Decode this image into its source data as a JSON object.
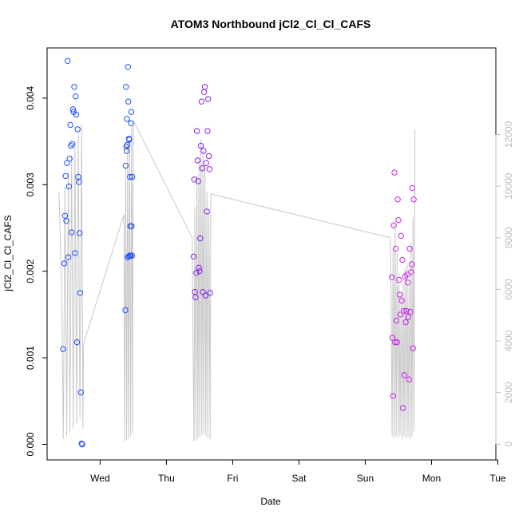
{
  "chart_data": {
    "type": "scatter",
    "title": "ATOM3 Northbound jCl2_Cl_Cl_CAFS",
    "xlabel": "Date",
    "ylabel": "jCl2_Cl_Cl_CAFS",
    "x_ticks": [
      "Wed",
      "Thu",
      "Fri",
      "Sat",
      "Sun",
      "Mon",
      "Tue"
    ],
    "xlim": [
      -0.8,
      5.97
    ],
    "ylim": [
      -0.00018,
      0.00458
    ],
    "y_ticks": [
      "0.000",
      "0.001",
      "0.002",
      "0.003",
      "0.004"
    ],
    "y_tick_values": [
      0,
      0.001,
      0.002,
      0.003,
      0.004
    ],
    "y2_ticks": [
      "0",
      "2000",
      "4000",
      "6000",
      "8000",
      "10000",
      "12000"
    ],
    "y2_tick_values": [
      0,
      2000,
      4000,
      6000,
      8000,
      10000,
      12000
    ],
    "y2lim": [
      -612,
      15360
    ],
    "colors": {
      "blue": "#1f4fff",
      "violet": "#8822ee",
      "magenta": "#cc22ee",
      "line": "#c8c8c8",
      "axis": "#000000"
    },
    "series": [
      {
        "color_key": "blue",
        "x": [
          -0.56,
          -0.54,
          -0.53,
          -0.52,
          -0.51,
          -0.5,
          -0.49,
          -0.48,
          -0.47,
          -0.46,
          -0.45,
          -0.44,
          -0.43,
          -0.42,
          -0.41,
          -0.4,
          -0.39,
          -0.38,
          -0.37,
          -0.36,
          -0.35,
          -0.34,
          -0.33,
          -0.32,
          -0.31,
          -0.3,
          -0.29,
          -0.28,
          -0.27
        ],
        "y": [
          0.0011,
          0.00209,
          0.00264,
          0.0031,
          0.00258,
          0.00325,
          0.00443,
          0.00216,
          0.00298,
          0.0033,
          0.00369,
          0.00345,
          0.00245,
          0.00347,
          0.00387,
          0.00384,
          0.00413,
          0.00221,
          0.00402,
          0.00381,
          0.00118,
          0.00364,
          0.00309,
          0.00303,
          0.00244,
          0.00175,
          0.0006,
          1e-05,
          0.0
        ]
      },
      {
        "color_key": "blue",
        "x": [
          0.38,
          0.385,
          0.39,
          0.395,
          0.4,
          0.405,
          0.41,
          0.415,
          0.42,
          0.425,
          0.43,
          0.435,
          0.44,
          0.445,
          0.45,
          0.455,
          0.46,
          0.465,
          0.47,
          0.475,
          0.48,
          0.485
        ],
        "y": [
          0.00155,
          0.00322,
          0.00413,
          0.00344,
          0.00339,
          0.00376,
          0.00346,
          0.00216,
          0.00436,
          0.00396,
          0.00217,
          0.00353,
          0.00352,
          0.00218,
          0.00309,
          0.00252,
          0.00218,
          0.00371,
          0.00384,
          0.00252,
          0.00218,
          0.00309
        ]
      },
      {
        "color_key": "violet",
        "x": [
          1.41,
          1.42,
          1.43,
          1.44,
          1.45,
          1.46,
          1.47,
          1.48,
          1.49,
          1.5,
          1.51,
          1.52,
          1.53,
          1.54,
          1.55,
          1.56,
          1.57,
          1.58,
          1.59,
          1.6,
          1.61,
          1.62,
          1.63,
          1.64,
          1.65,
          1.66
        ],
        "y": [
          0.00217,
          0.00306,
          0.00176,
          0.0017,
          0.00198,
          0.00362,
          0.00328,
          0.00304,
          0.00204,
          0.002,
          0.00238,
          0.00345,
          0.00396,
          0.00319,
          0.00176,
          0.00339,
          0.00407,
          0.00413,
          0.00172,
          0.00325,
          0.00269,
          0.00362,
          0.00399,
          0.00333,
          0.00318,
          0.00175
        ]
      },
      {
        "color_key": "magenta",
        "x": [
          4.4,
          4.41,
          4.42,
          4.43,
          4.44,
          4.45,
          4.46,
          4.47,
          4.48,
          4.49,
          4.5,
          4.51,
          4.52,
          4.53,
          4.54,
          4.55,
          4.56,
          4.57,
          4.58,
          4.59,
          4.6,
          4.61,
          4.62,
          4.63,
          4.64,
          4.65,
          4.66,
          4.67,
          4.68,
          4.69,
          4.7,
          4.71,
          4.72,
          4.73
        ],
        "y": [
          0.00193,
          0.00123,
          0.00056,
          0.00253,
          0.00314,
          0.00118,
          0.00226,
          0.00143,
          0.00118,
          0.00283,
          0.00259,
          0.0019,
          0.00173,
          0.0015,
          0.00241,
          0.00166,
          0.00213,
          0.00042,
          0.00154,
          0.0008,
          0.00194,
          0.00141,
          0.00154,
          0.00196,
          0.00187,
          0.00147,
          0.00075,
          0.00226,
          0.00153,
          0.00199,
          0.00208,
          0.00296,
          0.00111,
          0.00283
        ]
      }
    ],
    "line_series": {
      "color_key": "line",
      "x": [
        -0.62,
        -0.58,
        -0.555,
        -0.53,
        -0.505,
        -0.48,
        -0.455,
        -0.43,
        -0.405,
        -0.38,
        -0.355,
        -0.33,
        -0.305,
        -0.28,
        -0.26,
        -0.25,
        0.36,
        0.37,
        0.385,
        0.4,
        0.415,
        0.43,
        0.445,
        0.46,
        0.475,
        0.49,
        0.5,
        0.51,
        1.39,
        1.4,
        1.415,
        1.43,
        1.445,
        1.46,
        1.475,
        1.49,
        1.505,
        1.52,
        1.535,
        1.55,
        1.565,
        1.58,
        1.595,
        1.61,
        1.625,
        1.64,
        1.66,
        1.67,
        4.38,
        4.39,
        4.405,
        4.42,
        4.435,
        4.45,
        4.465,
        4.48,
        4.495,
        4.51,
        4.525,
        4.54,
        4.555,
        4.57,
        4.585,
        4.6,
        4.615,
        4.63,
        4.645,
        4.66,
        4.675,
        4.69,
        4.705,
        4.72,
        4.735,
        4.75
      ],
      "y": [
        9800,
        5800,
        200,
        10000,
        300,
        10600,
        500,
        11200,
        600,
        11700,
        800,
        12000,
        1000,
        12400,
        600,
        3900,
        8900,
        100,
        10700,
        150,
        11600,
        200,
        11800,
        300,
        12300,
        400,
        12300,
        12500,
        8000,
        4500,
        100,
        9200,
        150,
        10400,
        200,
        11000,
        300,
        11800,
        350,
        11400,
        400,
        10800,
        300,
        9800,
        250,
        9000,
        200,
        9700,
        8000,
        5600,
        300,
        7600,
        250,
        8500,
        300,
        7400,
        250,
        6200,
        350,
        5800,
        200,
        6200,
        300,
        6800,
        250,
        7000,
        300,
        6200,
        200,
        7800,
        300,
        8800,
        500,
        12200
      ]
    }
  }
}
